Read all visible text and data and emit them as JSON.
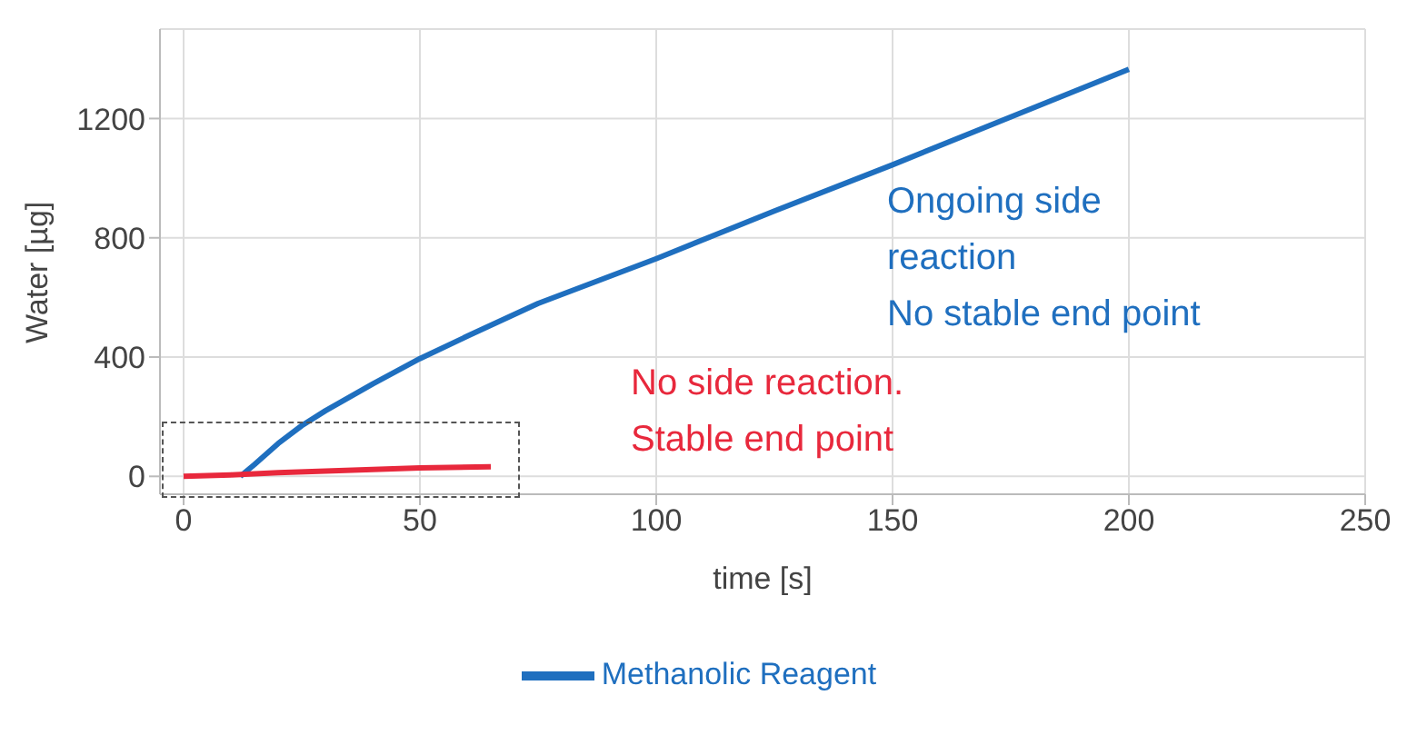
{
  "chart_data": {
    "type": "line",
    "xlabel": "time [s]",
    "ylabel": "Water [µg]",
    "series": [
      {
        "name": "Methanolic Reagent",
        "color": "#1f6fbf",
        "x": [
          12,
          15,
          20,
          25,
          30,
          40,
          50,
          60,
          75,
          100,
          125,
          150,
          175,
          200
        ],
        "values": [
          0,
          40,
          110,
          170,
          220,
          310,
          395,
          470,
          580,
          730,
          890,
          1045,
          1205,
          1365
        ]
      },
      {
        "color": "#e8283c",
        "x": [
          0,
          10,
          20,
          30,
          40,
          50,
          65
        ],
        "values": [
          0,
          5,
          12,
          18,
          23,
          28,
          32
        ]
      }
    ],
    "xlim": [
      -5,
      250
    ],
    "xticks": [
      0,
      50,
      100,
      150,
      200,
      250
    ],
    "ylim": [
      -60,
      1500
    ],
    "yticks": [
      0,
      400,
      800,
      1200
    ],
    "grid": true,
    "legend": "bottom",
    "marker": "none",
    "line_style": "solid",
    "annotations": [
      "Ongoing side\nreaction\nNo stable end point",
      "No side reaction.\nStable end point"
    ]
  }
}
